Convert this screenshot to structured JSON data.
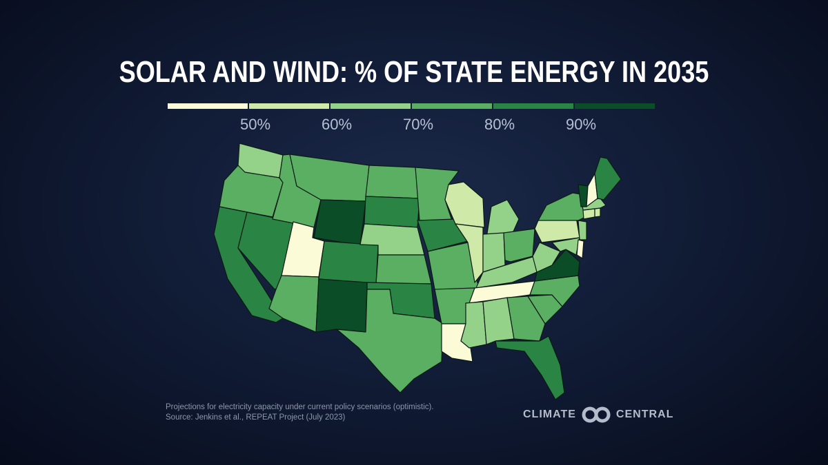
{
  "title": "SOLAR AND WIND: % OF STATE ENERGY IN 2035",
  "legend": {
    "ticks": [
      "50%",
      "60%",
      "70%",
      "80%",
      "90%"
    ],
    "colors": [
      "#fbfbd8",
      "#cfeaa8",
      "#94d28a",
      "#5aaf63",
      "#2a8444",
      "#0b4d26"
    ]
  },
  "colors": {
    "bin_below_50": "#fbfbd8",
    "bin_50_60": "#cfeaa8",
    "bin_60_70": "#94d28a",
    "bin_70_80": "#5aaf63",
    "bin_80_90": "#2a8444",
    "bin_90_plus": "#0b4d26"
  },
  "map_data": {
    "bins": {
      "WA": "bin_60_70",
      "OR": "bin_70_80",
      "CA": "bin_80_90",
      "NV": "bin_80_90",
      "ID": "bin_70_80",
      "MT": "bin_70_80",
      "WY": "bin_90_plus",
      "UT": "bin_below_50",
      "AZ": "bin_70_80",
      "NM": "bin_90_plus",
      "CO": "bin_80_90",
      "ND": "bin_70_80",
      "SD": "bin_80_90",
      "NE": "bin_60_70",
      "KS": "bin_70_80",
      "OK": "bin_80_90",
      "TX": "bin_70_80",
      "MN": "bin_70_80",
      "IA": "bin_80_90",
      "MO": "bin_70_80",
      "AR": "bin_70_80",
      "LA": "bin_below_50",
      "WI": "bin_50_60",
      "IL": "bin_50_60",
      "MI": "bin_60_70",
      "IN": "bin_60_70",
      "OH": "bin_70_80",
      "KY": "bin_60_70",
      "TN": "bin_below_50",
      "MS": "bin_60_70",
      "AL": "bin_60_70",
      "GA": "bin_70_80",
      "FL": "bin_80_90",
      "SC": "bin_70_80",
      "NC": "bin_70_80",
      "VA": "bin_90_plus",
      "WV": "bin_60_70",
      "PA": "bin_50_60",
      "NY": "bin_70_80",
      "VT": "bin_90_plus",
      "NH": "bin_below_50",
      "ME": "bin_80_90",
      "MA": "bin_60_70",
      "CT": "bin_50_60",
      "RI": "bin_50_60",
      "NJ": "bin_60_70",
      "DE": "bin_below_50",
      "MD": "bin_60_70"
    }
  },
  "footnote": {
    "line1": "Projections for electricity capacity under current policy scenarios (optimistic).",
    "line2": "Source: Jenkins et al., REPEAT Project (July 2023)"
  },
  "logo": {
    "left": "CLIMATE",
    "right": "CENTRAL",
    "icon": "climate-central-logo-icon"
  }
}
